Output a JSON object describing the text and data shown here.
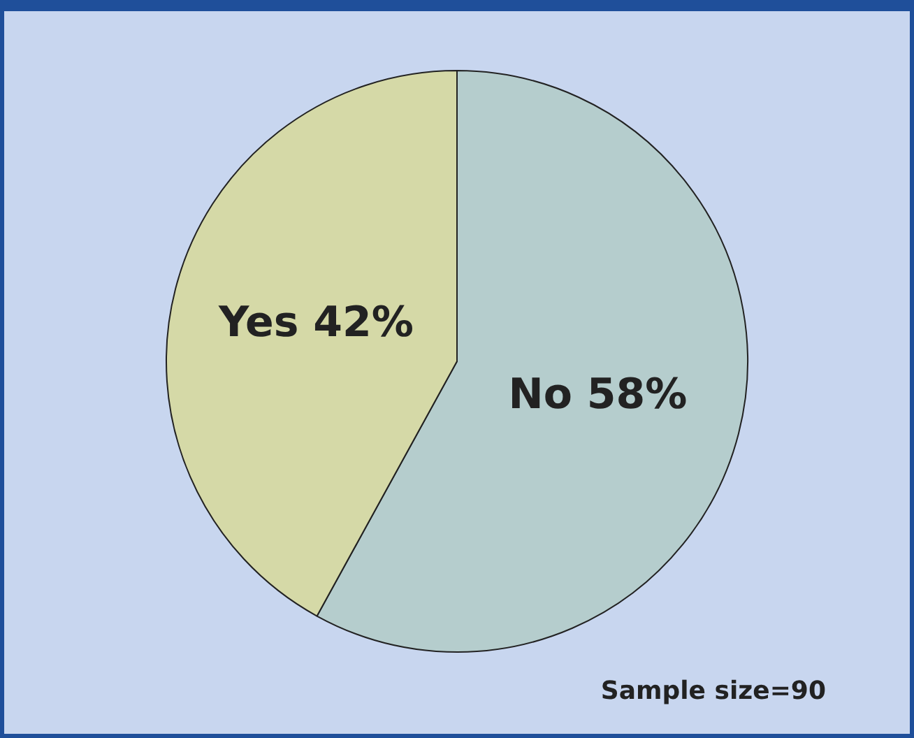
{
  "chart_data": {
    "type": "pie",
    "categories": [
      "No",
      "Yes"
    ],
    "values": [
      58,
      42
    ],
    "colors": [
      "#b5cdcd",
      "#d5d9a7"
    ],
    "value_labels": [
      "58%",
      "42%"
    ],
    "annotations": [
      "Sample size=90"
    ],
    "legend": false
  }
}
